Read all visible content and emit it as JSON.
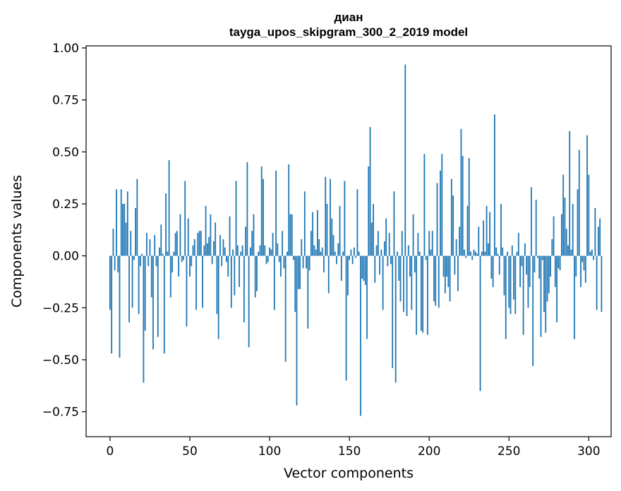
{
  "chart_data": {
    "type": "bar",
    "title_line1": "диан",
    "title_line2": "tayga_upos_skipgram_300_2_2019 model",
    "xlabel": "Vector components",
    "ylabel": "Components values",
    "xlim": [
      -15,
      314
    ],
    "ylim": [
      -0.87,
      1.01
    ],
    "x_ticks": [
      0,
      50,
      100,
      150,
      200,
      250,
      300
    ],
    "x_tick_labels": [
      "0",
      "50",
      "100",
      "150",
      "200",
      "250",
      "300"
    ],
    "y_ticks": [
      -0.75,
      -0.5,
      -0.25,
      0.0,
      0.25,
      0.5,
      0.75,
      1.0
    ],
    "y_tick_labels": [
      "−0.75",
      "−0.50",
      "−0.25",
      "0.00",
      "0.25",
      "0.50",
      "0.75",
      "1.00"
    ],
    "bar_color": "#1f77b4",
    "values": [
      -0.26,
      -0.47,
      0.13,
      -0.07,
      0.32,
      -0.08,
      -0.49,
      0.32,
      0.25,
      0.25,
      0.16,
      0.31,
      -0.32,
      0.12,
      -0.25,
      -0.02,
      0.23,
      0.37,
      -0.28,
      -0.05,
      0.01,
      -0.61,
      -0.36,
      0.11,
      -0.05,
      0.08,
      -0.2,
      -0.45,
      0.1,
      -0.05,
      -0.39,
      0.04,
      0.15,
      0.01,
      -0.47,
      0.3,
      0.02,
      0.46,
      -0.2,
      -0.08,
      0.02,
      0.11,
      0.12,
      -0.1,
      0.2,
      -0.03,
      -0.02,
      0.36,
      -0.34,
      0.18,
      -0.1,
      -0.05,
      0.05,
      0.08,
      -0.26,
      0.11,
      0.12,
      0.12,
      -0.25,
      0.05,
      0.24,
      0.06,
      0.09,
      0.2,
      -0.04,
      0.07,
      0.16,
      -0.28,
      -0.4,
      0.1,
      -0.05,
      0.08,
      0.04,
      -0.03,
      -0.1,
      0.19,
      -0.25,
      0.03,
      -0.19,
      0.36,
      0.05,
      -0.15,
      0.02,
      0.05,
      -0.32,
      0.14,
      0.45,
      -0.44,
      0.04,
      0.12,
      0.2,
      -0.2,
      -0.17,
      0.02,
      0.05,
      0.43,
      0.37,
      0.05,
      -0.04,
      -0.03,
      0.04,
      0.03,
      0.11,
      -0.26,
      0.41,
      0.06,
      -0.03,
      -0.1,
      0.12,
      -0.06,
      -0.51,
      0.02,
      0.44,
      0.2,
      0.2,
      -0.02,
      -0.27,
      -0.72,
      -0.16,
      -0.16,
      0.08,
      -0.06,
      0.31,
      -0.06,
      -0.35,
      -0.07,
      0.12,
      0.21,
      0.05,
      0.03,
      0.22,
      0.08,
      0.02,
      0.04,
      -0.08,
      0.38,
      0.25,
      -0.18,
      0.37,
      0.18,
      0.1,
      0.02,
      -0.04,
      0.06,
      0.24,
      -0.12,
      0.02,
      0.36,
      -0.6,
      -0.19,
      -0.02,
      0.03,
      -0.04,
      0.04,
      -0.01,
      0.32,
      0.02,
      -0.77,
      -0.11,
      -0.12,
      -0.14,
      -0.4,
      0.43,
      0.62,
      0.16,
      0.25,
      -0.13,
      0.05,
      0.12,
      -0.09,
      0.03,
      -0.26,
      0.07,
      0.18,
      -0.05,
      0.11,
      -0.04,
      -0.54,
      0.31,
      -0.61,
      0.02,
      -0.12,
      -0.22,
      0.12,
      -0.27,
      0.92,
      -0.29,
      0.05,
      -0.1,
      -0.26,
      0.2,
      -0.08,
      -0.38,
      0.11,
      0.02,
      -0.36,
      -0.37,
      0.49,
      -0.02,
      -0.38,
      0.12,
      0.03,
      0.12,
      -0.22,
      -0.24,
      0.35,
      -0.25,
      0.41,
      0.49,
      -0.1,
      -0.18,
      -0.1,
      -0.15,
      -0.22,
      0.37,
      0.29,
      -0.09,
      0.08,
      -0.17,
      0.14,
      0.61,
      0.48,
      0.03,
      -0.01,
      0.24,
      0.47,
      0.02,
      -0.02,
      0.03,
      0.02,
      0.01,
      0.14,
      -0.65,
      0.02,
      0.17,
      0.02,
      0.24,
      0.06,
      0.21,
      -0.11,
      -0.15,
      0.68,
      0.04,
      0.01,
      -0.09,
      0.25,
      0.04,
      -0.19,
      -0.4,
      0.02,
      -0.25,
      -0.28,
      0.05,
      -0.21,
      -0.28,
      0.02,
      0.11,
      -0.15,
      -0.05,
      -0.38,
      0.06,
      -0.09,
      -0.25,
      -0.15,
      0.33,
      -0.53,
      -0.08,
      0.27,
      -0.01,
      -0.11,
      -0.39,
      -0.02,
      -0.27,
      -0.37,
      -0.22,
      -0.18,
      -0.1,
      0.08,
      0.19,
      -0.15,
      -0.32,
      -0.06,
      -0.07,
      0.2,
      0.39,
      0.28,
      0.13,
      0.05,
      0.6,
      0.03,
      0.25,
      -0.4,
      -0.1,
      0.32,
      0.51,
      -0.15,
      -0.03,
      -0.07,
      -0.13,
      0.58,
      0.39,
      0.02,
      0.03,
      -0.02,
      0.23,
      -0.26,
      0.14,
      0.18,
      -0.27
    ]
  }
}
